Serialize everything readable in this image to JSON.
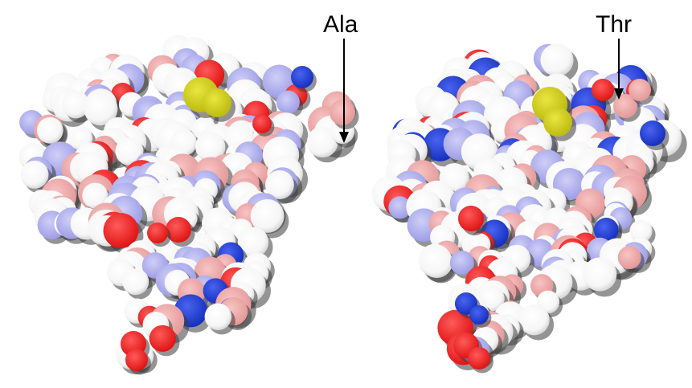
{
  "labels": {
    "left": "Ala",
    "right": "Thr"
  },
  "colors": {
    "carbon": "#ffffff",
    "oxygen_light": "#f2a7a8",
    "nitrogen_light": "#b3b3f2",
    "oxygen": "#ff2020",
    "nitrogen": "#2040d8",
    "sulfur": "#d4d21a",
    "shadow": "#3a3a3a",
    "text": "#000000"
  },
  "molecules": [
    {
      "id": "left-protein",
      "annotation": "Ala"
    },
    {
      "id": "right-protein",
      "annotation": "Thr"
    }
  ]
}
